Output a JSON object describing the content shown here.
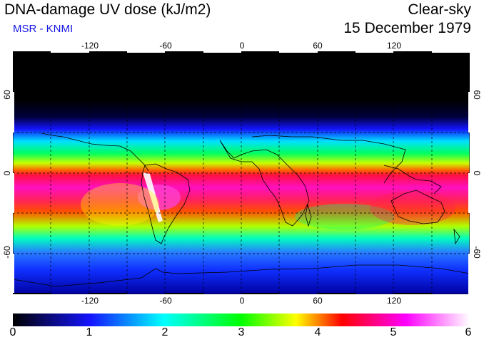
{
  "header": {
    "title": "DNA-damage UV dose (kJ/m2)",
    "subtitle": "MSR - KNMI",
    "condition": "Clear-sky",
    "date": "15 December 1979"
  },
  "map": {
    "projection": "equirectangular",
    "lon_range": [
      -180,
      180
    ],
    "lat_range": [
      -90,
      90
    ],
    "lon_ticks": [
      "-120",
      "-60",
      "0",
      "60",
      "120"
    ],
    "lat_ticks": [
      "60",
      "0",
      "-60"
    ],
    "gridlines": "dashed every 30 degrees"
  },
  "colorbar": {
    "ticks": [
      "0",
      "1",
      "2",
      "3",
      "4",
      "5",
      "6"
    ],
    "colors": [
      "#000000",
      "#1414ff",
      "#00ffff",
      "#00ff00",
      "#ffff00",
      "#ff0000",
      "#ff00ff",
      "#ffffff"
    ]
  }
}
